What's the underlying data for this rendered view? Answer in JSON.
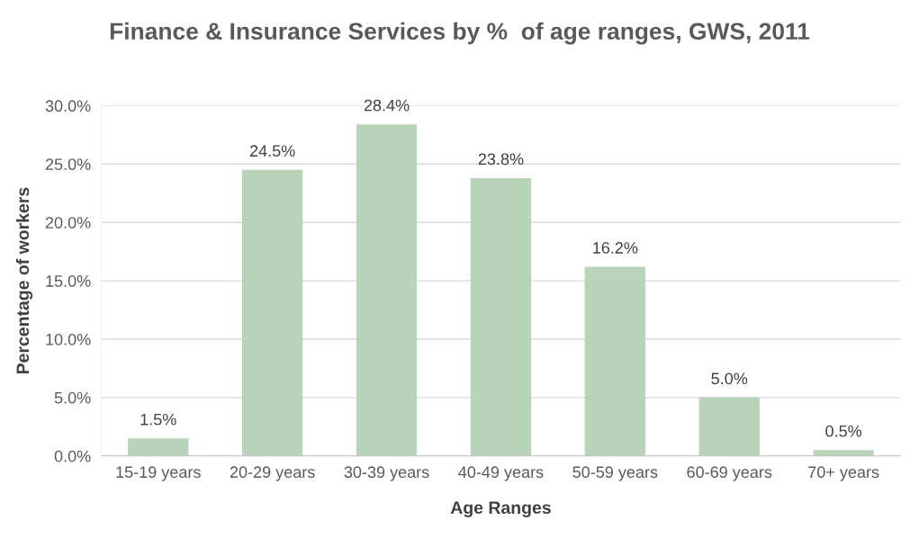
{
  "chart_data": {
    "type": "bar",
    "title": "Finance & Insurance Services by %  of age ranges, GWS, 2011",
    "xlabel": "Age Ranges",
    "ylabel": "Percentage of workers",
    "categories": [
      "15-19 years",
      "20-29 years",
      "30-39 years",
      "40-49 years",
      "50-59 years",
      "60-69 years",
      "70+ years"
    ],
    "values": [
      1.5,
      24.5,
      28.4,
      23.8,
      16.2,
      5.0,
      0.5
    ],
    "value_labels": [
      "1.5%",
      "24.5%",
      "28.4%",
      "23.8%",
      "16.2%",
      "5.0%",
      "0.5%"
    ],
    "color": "#b9d3b9",
    "ylim": [
      0,
      30
    ],
    "yticks": [
      {
        "value": 0,
        "label": "0.0%"
      },
      {
        "value": 5,
        "label": "5.0%"
      },
      {
        "value": 10,
        "label": "10.0%"
      },
      {
        "value": 15,
        "label": "15.0%"
      },
      {
        "value": 20,
        "label": "20.0%"
      },
      {
        "value": 25,
        "label": "25.0%"
      },
      {
        "value": 30,
        "label": "30.0%"
      }
    ],
    "grid": "y"
  }
}
